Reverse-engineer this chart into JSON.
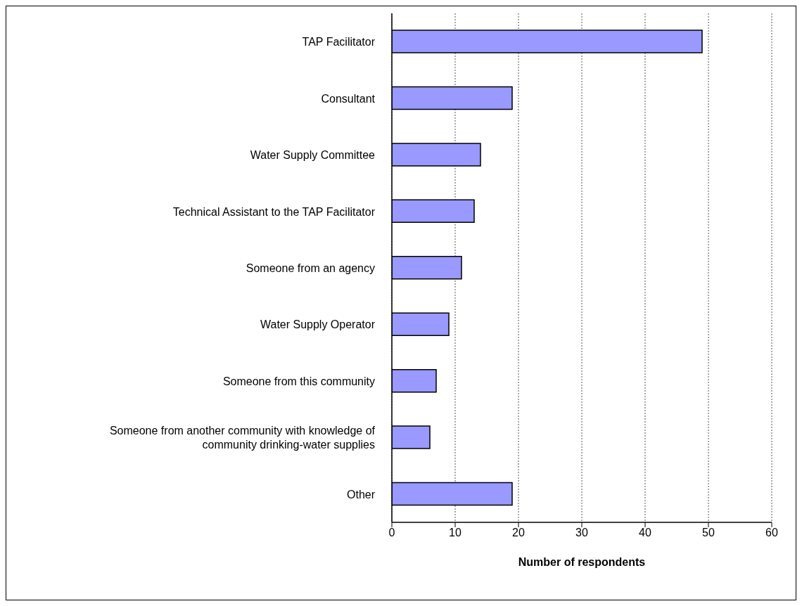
{
  "chart_data": {
    "type": "bar",
    "orientation": "horizontal",
    "xlabel": "Number of respondents",
    "categories": [
      "TAP Facilitator",
      "Consultant",
      "Water Supply Committee",
      "Technical Assistant to the TAP Facilitator",
      "Someone from an agency",
      "Water Supply Operator",
      "Someone from this community",
      "Someone from another community with knowledge of community drinking-water supplies",
      "Other"
    ],
    "values": [
      49,
      19,
      14,
      13,
      11,
      9,
      7,
      6,
      19
    ],
    "color": "#9999ff",
    "xlim": [
      0,
      60
    ],
    "xticks": [
      0,
      10,
      20,
      30,
      40,
      50,
      60
    ],
    "grid": "x",
    "legend": false
  }
}
